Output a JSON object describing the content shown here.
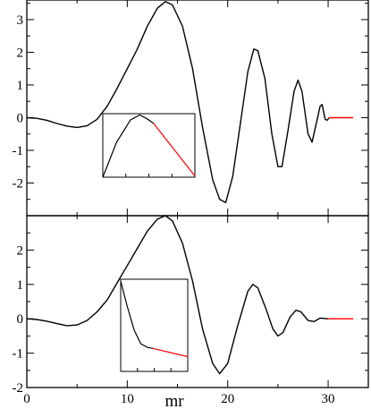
{
  "chart_data": [
    {
      "type": "line",
      "panel": "top",
      "xlim": [
        0,
        34
      ],
      "ylim": [
        -3,
        3.6
      ],
      "yticks": [
        3,
        2,
        1,
        0,
        -1,
        -2
      ],
      "ytick_labels": [
        "3",
        "2",
        "1",
        "0",
        "-1",
        "-2"
      ],
      "grid": false,
      "series": [
        {
          "color": "#000000",
          "points": [
            [
              0,
              0
            ],
            [
              1,
              -0.02
            ],
            [
              2,
              -0.08
            ],
            [
              3,
              -0.18
            ],
            [
              4,
              -0.26
            ],
            [
              5,
              -0.3
            ],
            [
              6,
              -0.25
            ],
            [
              7,
              -0.05
            ],
            [
              8,
              0.35
            ],
            [
              9,
              0.9
            ],
            [
              10,
              1.5
            ],
            [
              11,
              2.1
            ],
            [
              12,
              2.8
            ],
            [
              13,
              3.35
            ],
            [
              13.8,
              3.55
            ],
            [
              14.5,
              3.45
            ],
            [
              15.5,
              2.8
            ],
            [
              16.5,
              1.5
            ],
            [
              17.5,
              -0.3
            ],
            [
              18.5,
              -1.9
            ],
            [
              19.2,
              -2.5
            ],
            [
              19.8,
              -2.6
            ],
            [
              20.5,
              -1.8
            ],
            [
              21.3,
              -0.1
            ],
            [
              22,
              1.4
            ],
            [
              22.6,
              2.1
            ],
            [
              23,
              2.05
            ],
            [
              23.7,
              1.2
            ],
            [
              24.4,
              -0.5
            ],
            [
              25,
              -1.5
            ],
            [
              25.4,
              -1.5
            ],
            [
              26,
              -0.4
            ],
            [
              26.6,
              0.8
            ],
            [
              27,
              1.15
            ],
            [
              27.4,
              0.8
            ],
            [
              28,
              -0.5
            ],
            [
              28.4,
              -0.75
            ],
            [
              28.8,
              -0.2
            ],
            [
              29.2,
              0.35
            ],
            [
              29.4,
              0.4
            ],
            [
              29.7,
              -0.05
            ],
            [
              29.9,
              -0.08
            ],
            [
              30.1,
              0
            ]
          ]
        },
        {
          "color": "#ff0000",
          "points": [
            [
              30.1,
              0
            ],
            [
              32.5,
              0
            ]
          ]
        }
      ],
      "inset": {
        "series": [
          {
            "color": "#000000",
            "points": [
              [
                0,
                0
              ],
              [
                0.15,
                0.55
              ],
              [
                0.3,
                0.9
              ],
              [
                0.4,
                0.98
              ],
              [
                0.48,
                0.92
              ],
              [
                0.55,
                0.85
              ]
            ]
          },
          {
            "color": "#ff0000",
            "points": [
              [
                0.55,
                0.85
              ],
              [
                1,
                0.02
              ]
            ]
          }
        ]
      }
    },
    {
      "type": "line",
      "panel": "bottom",
      "xlim": [
        0,
        34
      ],
      "ylim": [
        -2,
        3
      ],
      "yticks": [
        2,
        1,
        0,
        -1,
        -2
      ],
      "ytick_labels": [
        "2",
        "1",
        "0",
        "-1",
        "-2"
      ],
      "xticks": [
        0,
        10,
        20,
        30
      ],
      "xtick_labels": [
        "0",
        "10",
        "20",
        "30"
      ],
      "xlabel": "mr",
      "grid": false,
      "series": [
        {
          "color": "#000000",
          "points": [
            [
              0,
              0
            ],
            [
              1,
              -0.02
            ],
            [
              2,
              -0.07
            ],
            [
              3,
              -0.14
            ],
            [
              4,
              -0.2
            ],
            [
              5,
              -0.18
            ],
            [
              6,
              -0.05
            ],
            [
              7,
              0.2
            ],
            [
              8,
              0.55
            ],
            [
              9,
              1.05
            ],
            [
              10,
              1.55
            ],
            [
              11,
              2.05
            ],
            [
              12,
              2.55
            ],
            [
              13,
              2.9
            ],
            [
              13.8,
              3.0
            ],
            [
              14.5,
              2.85
            ],
            [
              15.5,
              2.2
            ],
            [
              16.5,
              1.1
            ],
            [
              17.5,
              -0.3
            ],
            [
              18.5,
              -1.3
            ],
            [
              19.2,
              -1.6
            ],
            [
              20,
              -1.3
            ],
            [
              21,
              -0.2
            ],
            [
              22,
              0.8
            ],
            [
              22.5,
              1.0
            ],
            [
              23,
              0.9
            ],
            [
              23.8,
              0.3
            ],
            [
              24.5,
              -0.3
            ],
            [
              25,
              -0.5
            ],
            [
              25.5,
              -0.4
            ],
            [
              26.2,
              0.05
            ],
            [
              26.8,
              0.25
            ],
            [
              27.3,
              0.2
            ],
            [
              28,
              -0.05
            ],
            [
              28.6,
              -0.08
            ],
            [
              29.2,
              0.02
            ],
            [
              30,
              0
            ]
          ]
        },
        {
          "color": "#ff0000",
          "points": [
            [
              30,
              0
            ],
            [
              32.5,
              0
            ]
          ]
        }
      ],
      "inset": {
        "series": [
          {
            "color": "#000000",
            "points": [
              [
                0,
                0.98
              ],
              [
                0.1,
                0.7
              ],
              [
                0.2,
                0.45
              ],
              [
                0.3,
                0.3
              ],
              [
                0.4,
                0.26
              ],
              [
                0.48,
                0.25
              ]
            ]
          },
          {
            "color": "#ff0000",
            "points": [
              [
                0.48,
                0.25
              ],
              [
                1,
                0.16
              ]
            ]
          }
        ]
      }
    }
  ]
}
